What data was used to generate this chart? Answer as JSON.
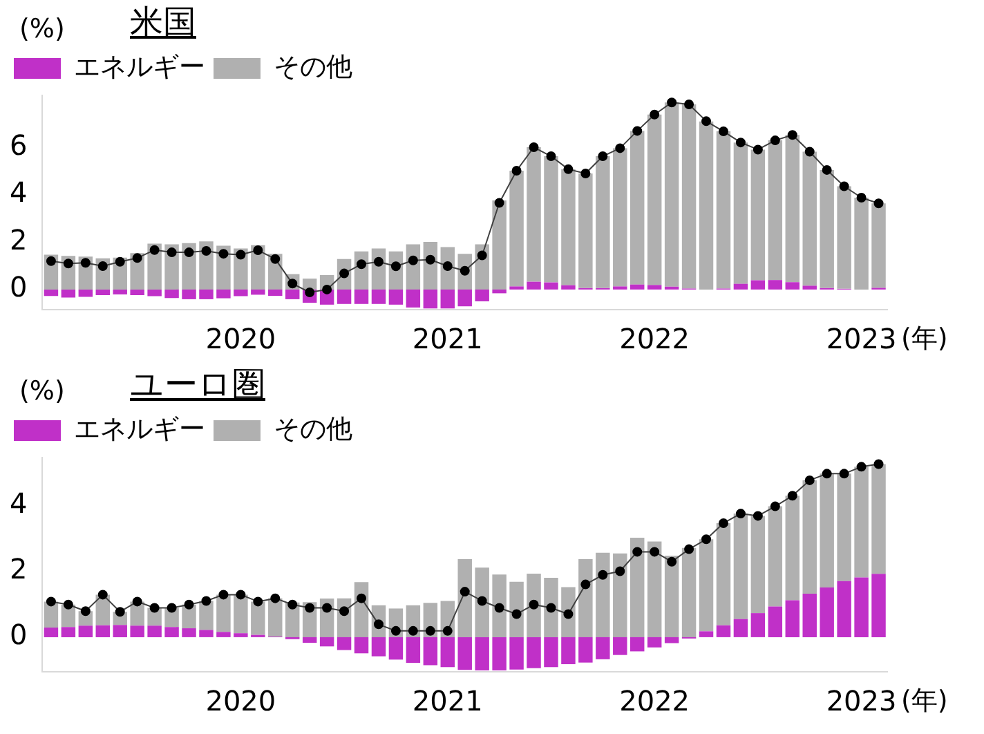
{
  "chart_data": [
    {
      "type": "bar",
      "title": "米国",
      "ylabel": "(%)",
      "xlabel": "(年)",
      "stacked": true,
      "legend": "top left",
      "marker": "circle",
      "categories": [
        null,
        null,
        null,
        null,
        null,
        null,
        null,
        null,
        null,
        null,
        null,
        "2020",
        null,
        null,
        null,
        null,
        null,
        null,
        null,
        null,
        null,
        null,
        null,
        "2021",
        null,
        null,
        null,
        null,
        null,
        null,
        null,
        null,
        null,
        null,
        null,
        "2022",
        null,
        null,
        null,
        null,
        null,
        null,
        null,
        null,
        null,
        null,
        null,
        "2023",
        null
      ],
      "series": [
        {
          "name": "エネルギー",
          "color": "#c030c8",
          "values": [
            -0.27,
            -0.34,
            -0.31,
            -0.24,
            -0.21,
            -0.24,
            -0.28,
            -0.36,
            -0.41,
            -0.41,
            -0.37,
            -0.28,
            -0.22,
            -0.27,
            -0.41,
            -0.56,
            -0.64,
            -0.61,
            -0.61,
            -0.61,
            -0.64,
            -0.76,
            -0.8,
            -0.8,
            -0.71,
            -0.5,
            -0.16,
            0.13,
            0.33,
            0.3,
            0.18,
            0.06,
            0.06,
            0.13,
            0.21,
            0.19,
            0.12,
            0.04,
            null,
            0.04,
            0.24,
            0.39,
            0.4,
            0.31,
            0.16,
            0.06,
            0.03,
            0,
            0.07
          ]
        },
        {
          "name": "その他",
          "color": "#b0b0b0",
          "values": [
            1.47,
            1.42,
            1.39,
            1.32,
            1.35,
            1.54,
            1.94,
            1.91,
            1.96,
            2.03,
            1.85,
            1.73,
            1.87,
            1.51,
            0.65,
            0.46,
            0.61,
            1.29,
            1.61,
            1.73,
            1.61,
            1.91,
            2.01,
            1.79,
            1.51,
            1.91,
            3.76,
            4.89,
            5.68,
            5.33,
            4.9,
            4.84,
            5.57,
            5.84,
            6.49,
            7.2,
            7.78,
            7.78,
            7.1,
            6.64,
            5.97,
            5.52,
            5.9,
            6.22,
            5.66,
            4.99,
            4.33,
            3.88,
            3.57
          ]
        },
        {
          "type": "line",
          "color": "#404040",
          "values": [
            1.2,
            1.1,
            1.13,
            0.99,
            1.17,
            1.33,
            1.67,
            1.57,
            1.57,
            1.63,
            1.51,
            1.47,
            1.66,
            1.29,
            0.25,
            -0.12,
            0,
            0.68,
            1.07,
            1.17,
            0.98,
            1.23,
            1.26,
            0.99,
            0.79,
            1.44,
            3.66,
            5.02,
            6.01,
            5.63,
            5.08,
            4.9,
            5.63,
            5.97,
            6.7,
            7.39,
            7.9,
            7.82,
            7.11,
            6.68,
            6.21,
            5.91,
            6.3,
            6.53,
            5.82,
            5.05,
            4.36,
            3.88,
            3.64
          ]
        }
      ],
      "ylim": [
        -0.85,
        8.2
      ],
      "yticks": [
        0,
        2,
        4,
        6
      ]
    },
    {
      "type": "bar",
      "title": "ユーロ圏",
      "ylabel": "(%)",
      "xlabel": "(年)",
      "stacked": true,
      "legend": "top left",
      "marker": "circle",
      "categories": [
        null,
        null,
        null,
        null,
        null,
        null,
        null,
        null,
        null,
        null,
        null,
        "2020",
        null,
        null,
        null,
        null,
        null,
        null,
        null,
        null,
        null,
        null,
        null,
        "2021",
        null,
        null,
        null,
        null,
        null,
        null,
        null,
        null,
        null,
        null,
        null,
        "2022",
        null,
        null,
        null,
        null,
        null,
        null,
        null,
        null,
        null,
        null,
        null,
        "2023",
        null
      ],
      "series": [
        {
          "name": "エネルギー",
          "color": "#c030c8",
          "values": [
            0.29,
            0.31,
            0.35,
            0.36,
            0.37,
            0.35,
            0.35,
            0.31,
            0.27,
            0.22,
            0.16,
            0.12,
            0.07,
            0.02,
            -0.06,
            -0.17,
            -0.28,
            -0.39,
            -0.49,
            -0.58,
            -0.68,
            -0.78,
            -0.85,
            -0.91,
            -0.99,
            -1.01,
            -1.01,
            -0.98,
            -0.94,
            -0.91,
            -0.82,
            -0.77,
            -0.67,
            -0.54,
            -0.43,
            -0.31,
            -0.18,
            -0.04,
            0.18,
            0.36,
            0.55,
            0.73,
            0.93,
            1.12,
            1.32,
            1.51,
            1.7,
            1.81,
            1.92
          ]
        },
        {
          "name": "その他",
          "color": "#b0b0b0",
          "values": [
            0.79,
            0.68,
            0.44,
            0.93,
            0.4,
            0.73,
            0.54,
            0.58,
            0.72,
            0.88,
            1.13,
            1.17,
            1.01,
            1.16,
            1.05,
            1.06,
            1.17,
            1.18,
            1.67,
            0.97,
            0.87,
            0.97,
            1.04,
            1.1,
            2.37,
            2.11,
            1.9,
            1.68,
            1.93,
            1.8,
            1.52,
            2.37,
            2.56,
            2.54,
            3.02,
            2.9,
            2.47,
            2.71,
            2.79,
            3.1,
            3.2,
            2.95,
            3.04,
            3.17,
            3.44,
            3.45,
            3.26,
            3.36,
            3.33
          ]
        },
        {
          "type": "line",
          "color": "#404040",
          "values": [
            1.08,
            0.99,
            0.79,
            1.29,
            0.77,
            1.08,
            0.89,
            0.89,
            0.99,
            1.1,
            1.29,
            1.29,
            1.08,
            1.18,
            0.99,
            0.89,
            0.89,
            0.79,
            1.18,
            0.39,
            0.19,
            0.19,
            0.19,
            0.19,
            1.38,
            1.1,
            0.89,
            0.7,
            0.99,
            0.89,
            0.7,
            1.6,
            1.89,
            2.0,
            2.59,
            2.59,
            2.29,
            2.67,
            2.97,
            3.46,
            3.75,
            3.68,
            3.97,
            4.29,
            4.76,
            4.96,
            4.96,
            5.17,
            5.25
          ]
        }
      ],
      "ylim": [
        -1.05,
        5.45
      ],
      "yticks": [
        0,
        2,
        4
      ]
    }
  ]
}
